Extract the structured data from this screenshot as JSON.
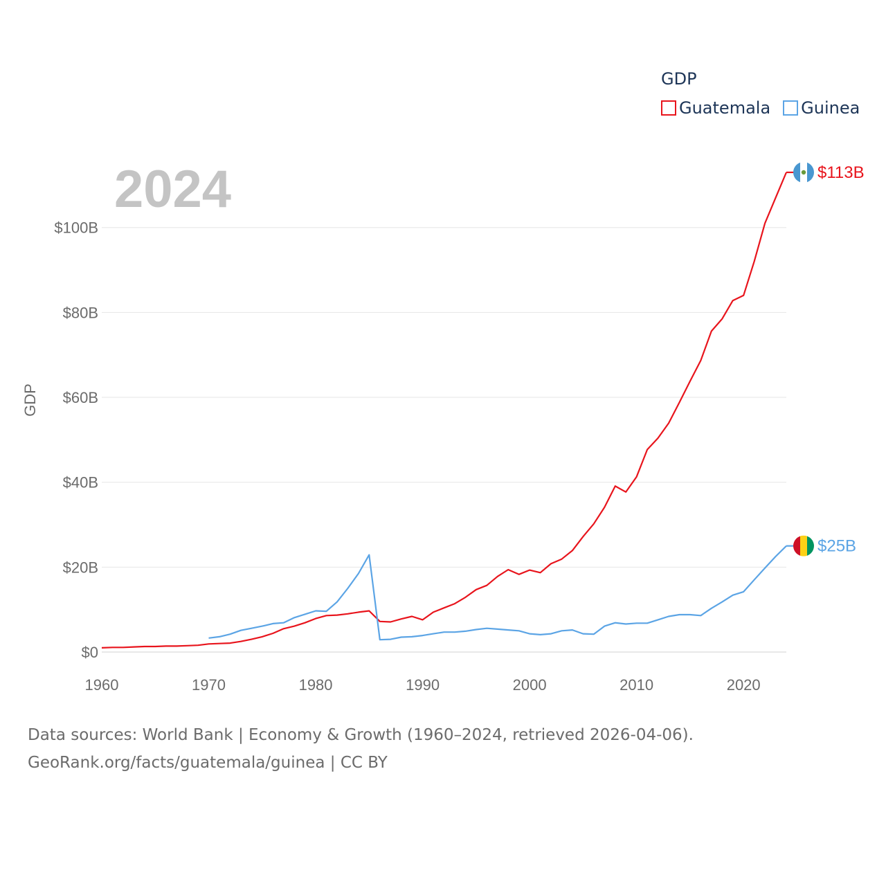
{
  "legend": {
    "title": "GDP",
    "items": [
      {
        "name": "Guatemala",
        "color": "#e8141c"
      },
      {
        "name": "Guinea",
        "color": "#5ba4e5"
      }
    ]
  },
  "footer": {
    "line1": "Data sources: World Bank | Economy & Growth (1960–2024, retrieved 2026-04-06).",
    "line2": "GeoRank.org/facts/guatemala/guinea | CC BY"
  },
  "chart_data": {
    "type": "line",
    "year_label": "2024",
    "ylabel": "GDP",
    "xlim": [
      1960,
      2024
    ],
    "ylim": [
      0,
      113
    ],
    "x_ticks": [
      1960,
      1970,
      1980,
      1990,
      2000,
      2010,
      2020
    ],
    "y_ticks": [
      {
        "value": 0,
        "label": "$0"
      },
      {
        "value": 20,
        "label": "$20B"
      },
      {
        "value": 40,
        "label": "$40B"
      },
      {
        "value": 60,
        "label": "$60B"
      },
      {
        "value": 80,
        "label": "$80B"
      },
      {
        "value": 100,
        "label": "$100B"
      }
    ],
    "series": [
      {
        "name": "Guatemala",
        "color": "#e8141c",
        "end_label": "$113B",
        "flag": "guatemala-flag",
        "x": [
          1960,
          1961,
          1962,
          1963,
          1964,
          1965,
          1966,
          1967,
          1968,
          1969,
          1970,
          1971,
          1972,
          1973,
          1974,
          1975,
          1976,
          1977,
          1978,
          1979,
          1980,
          1981,
          1982,
          1983,
          1984,
          1985,
          1986,
          1987,
          1988,
          1989,
          1990,
          1991,
          1992,
          1993,
          1994,
          1995,
          1996,
          1997,
          1998,
          1999,
          2000,
          2001,
          2002,
          2003,
          2004,
          2005,
          2006,
          2007,
          2008,
          2009,
          2010,
          2011,
          2012,
          2013,
          2014,
          2015,
          2016,
          2017,
          2018,
          2019,
          2020,
          2021,
          2022,
          2023,
          2024
        ],
        "values": [
          1.0,
          1.1,
          1.1,
          1.2,
          1.3,
          1.3,
          1.4,
          1.4,
          1.5,
          1.6,
          1.9,
          2.0,
          2.1,
          2.5,
          3.0,
          3.6,
          4.4,
          5.5,
          6.1,
          6.9,
          7.9,
          8.6,
          8.7,
          9.0,
          9.4,
          9.7,
          7.2,
          7.1,
          7.8,
          8.4,
          7.6,
          9.4,
          10.4,
          11.4,
          12.9,
          14.7,
          15.7,
          17.8,
          19.4,
          18.3,
          19.3,
          18.7,
          20.8,
          21.9,
          23.9,
          27.2,
          30.2,
          34.1,
          39.1,
          37.7,
          41.3,
          47.7,
          50.4,
          53.9,
          58.8,
          63.8,
          68.7,
          75.6,
          78.5,
          82.8,
          84.0,
          92.0,
          101.0,
          107.0,
          113.0
        ]
      },
      {
        "name": "Guinea",
        "color": "#5ba4e5",
        "end_label": "$25B",
        "flag": "guinea-flag",
        "x": [
          1970,
          1971,
          1972,
          1973,
          1974,
          1975,
          1976,
          1977,
          1978,
          1979,
          1980,
          1981,
          1982,
          1983,
          1984,
          1985,
          1986,
          1987,
          1988,
          1989,
          1990,
          1991,
          1992,
          1993,
          1994,
          1995,
          1996,
          1997,
          1998,
          1999,
          2000,
          2001,
          2002,
          2003,
          2004,
          2005,
          2006,
          2007,
          2008,
          2009,
          2010,
          2011,
          2012,
          2013,
          2014,
          2015,
          2016,
          2017,
          2018,
          2019,
          2020,
          2021,
          2022,
          2023,
          2024
        ],
        "values": [
          3.3,
          3.6,
          4.2,
          5.1,
          5.6,
          6.1,
          6.7,
          6.9,
          8.1,
          8.9,
          9.7,
          9.6,
          11.8,
          15.0,
          18.5,
          22.9,
          2.9,
          3.0,
          3.5,
          3.6,
          3.9,
          4.3,
          4.7,
          4.7,
          4.9,
          5.3,
          5.6,
          5.4,
          5.2,
          5.0,
          4.3,
          4.1,
          4.3,
          5.0,
          5.2,
          4.3,
          4.2,
          6.1,
          6.9,
          6.6,
          6.8,
          6.8,
          7.6,
          8.4,
          8.8,
          8.8,
          8.6,
          10.3,
          11.8,
          13.4,
          14.2,
          17.0,
          19.8,
          22.5,
          25.0
        ]
      }
    ]
  }
}
